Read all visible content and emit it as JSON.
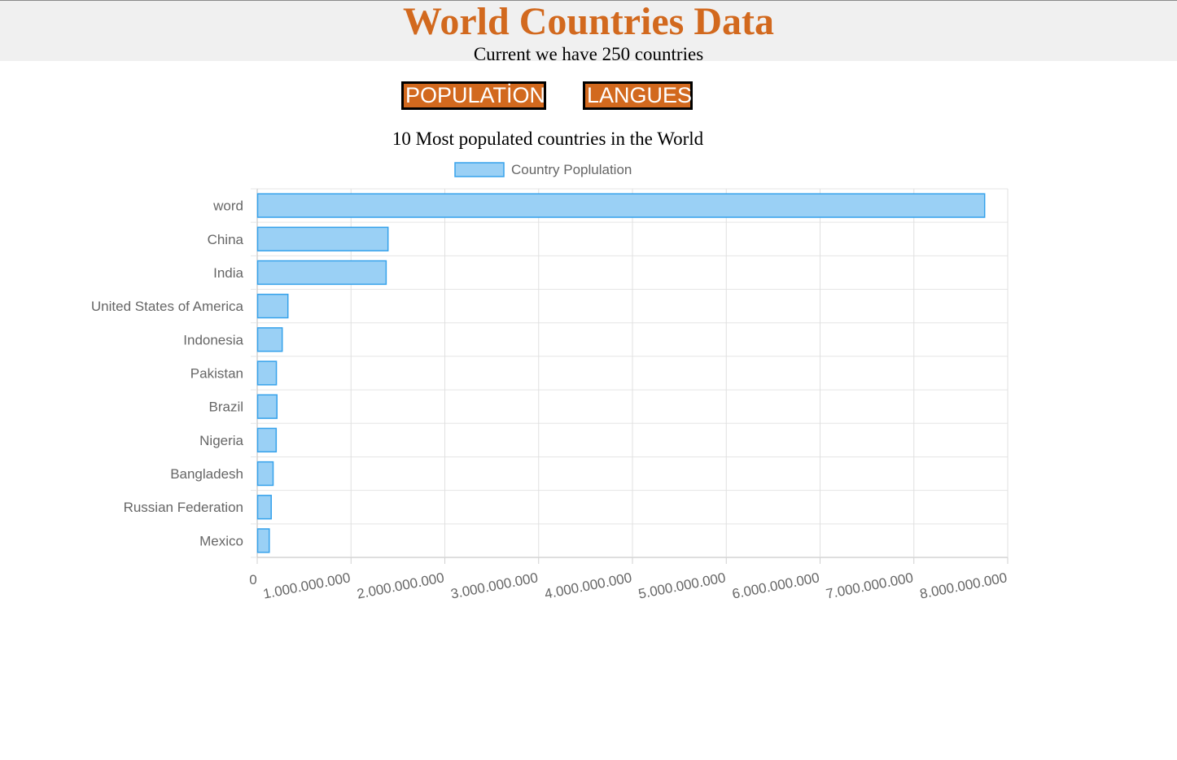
{
  "header": {
    "title": "World Countries Data",
    "subtitle": "Current we have 250 countries"
  },
  "buttons": {
    "population": "POPULATİON",
    "languages": "LANGUES"
  },
  "colors": {
    "accent": "#d2691e",
    "bar_fill": "#9ad0f5",
    "bar_border": "#36a2eb"
  },
  "chart_data": {
    "type": "bar",
    "orientation": "horizontal",
    "title": "10 Most populated countries in the World",
    "legend": {
      "label": "Country Poplulation",
      "position": "top"
    },
    "categories": [
      "word",
      "China",
      "India",
      "United States of America",
      "Indonesia",
      "Pakistan",
      "Brazil",
      "Nigeria",
      "Bangladesh",
      "Russian Federation",
      "Mexico"
    ],
    "series": [
      {
        "name": "Country Poplulation",
        "values": [
          7750000000,
          1390000000,
          1370000000,
          323000000,
          262000000,
          200000000,
          206000000,
          198000000,
          165000000,
          145000000,
          124000000
        ]
      }
    ],
    "xlim": [
      0,
      8000000000
    ],
    "xticks": [
      "0",
      "1.000.000.000",
      "2.000.000.000",
      "3.000.000.000",
      "4.000.000.000",
      "5.000.000.000",
      "6.000.000.000",
      "7.000.000.000",
      "8.000.000.000"
    ],
    "grid": true
  }
}
